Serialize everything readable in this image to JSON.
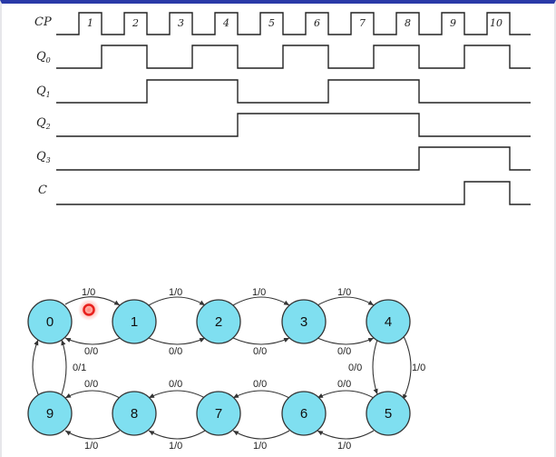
{
  "timing": {
    "signals": [
      {
        "id": "cp",
        "label": "CP",
        "sub": ""
      },
      {
        "id": "q0",
        "label": "Q",
        "sub": "0"
      },
      {
        "id": "q1",
        "label": "Q",
        "sub": "1"
      },
      {
        "id": "q2",
        "label": "Q",
        "sub": "2"
      },
      {
        "id": "q3",
        "label": "Q",
        "sub": "3"
      },
      {
        "id": "c",
        "label": "C",
        "sub": ""
      }
    ],
    "pulse_labels": [
      "1",
      "2",
      "3",
      "4",
      "5",
      "6",
      "7",
      "8",
      "9",
      "10"
    ]
  },
  "state_diagram": {
    "states": [
      "0",
      "1",
      "2",
      "3",
      "4",
      "5",
      "6",
      "7",
      "8",
      "9"
    ],
    "edge_labels": {
      "e0_1_top": "1/0",
      "e1_2_top": "1/0",
      "e2_3_top": "1/0",
      "e3_4_top": "1/0",
      "e0_1_bot": "0/0",
      "e1_2_bot": "0/0",
      "e2_3_bot": "0/0",
      "e3_4_bot": "0/0",
      "e4_5_right": "1/0",
      "e4_5_left": "0/0",
      "e9_0_right": "0/1",
      "e9_8_top": "0/0",
      "e8_7_top": "0/0",
      "e7_6_top": "0/0",
      "e6_5_top": "0/0",
      "e9_8_bot": "1/0",
      "e8_7_bot": "1/0",
      "e7_6_bot": "1/0",
      "e6_5_bot": "1/0"
    }
  },
  "colors": {
    "node_fill": "#7fdff0",
    "cursor": "#e8201c",
    "frame_top": "#2a3aa8"
  }
}
